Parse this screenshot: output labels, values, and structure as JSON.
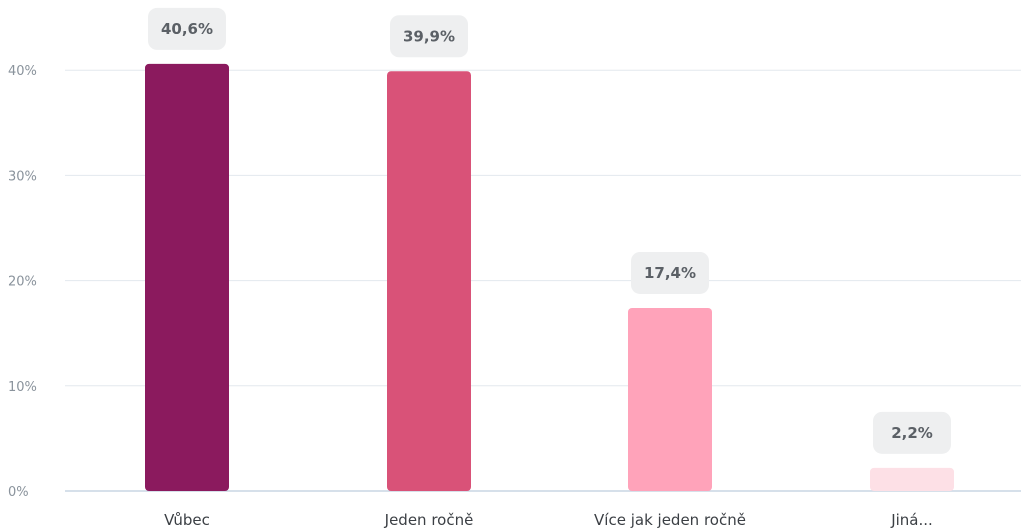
{
  "chart_data": {
    "type": "bar",
    "categories": [
      "Vůbec",
      "Jeden ročně",
      "Více jak jeden ročně",
      "Jiná..."
    ],
    "values": [
      40.6,
      39.9,
      17.4,
      2.2
    ],
    "value_labels": [
      "40,6%",
      "39,9%",
      "17,4%",
      "2,2%"
    ],
    "colors": [
      "#8b1a5e",
      "#d95278",
      "#ffa3ba",
      "#fde0e6"
    ],
    "yticks": [
      0,
      10,
      20,
      30,
      40
    ],
    "ytick_labels": [
      "0%",
      "10%",
      "20%",
      "30%",
      "40%"
    ],
    "ylim": [
      0,
      40
    ],
    "grid": true,
    "title": "",
    "xlabel": "",
    "ylabel": ""
  }
}
